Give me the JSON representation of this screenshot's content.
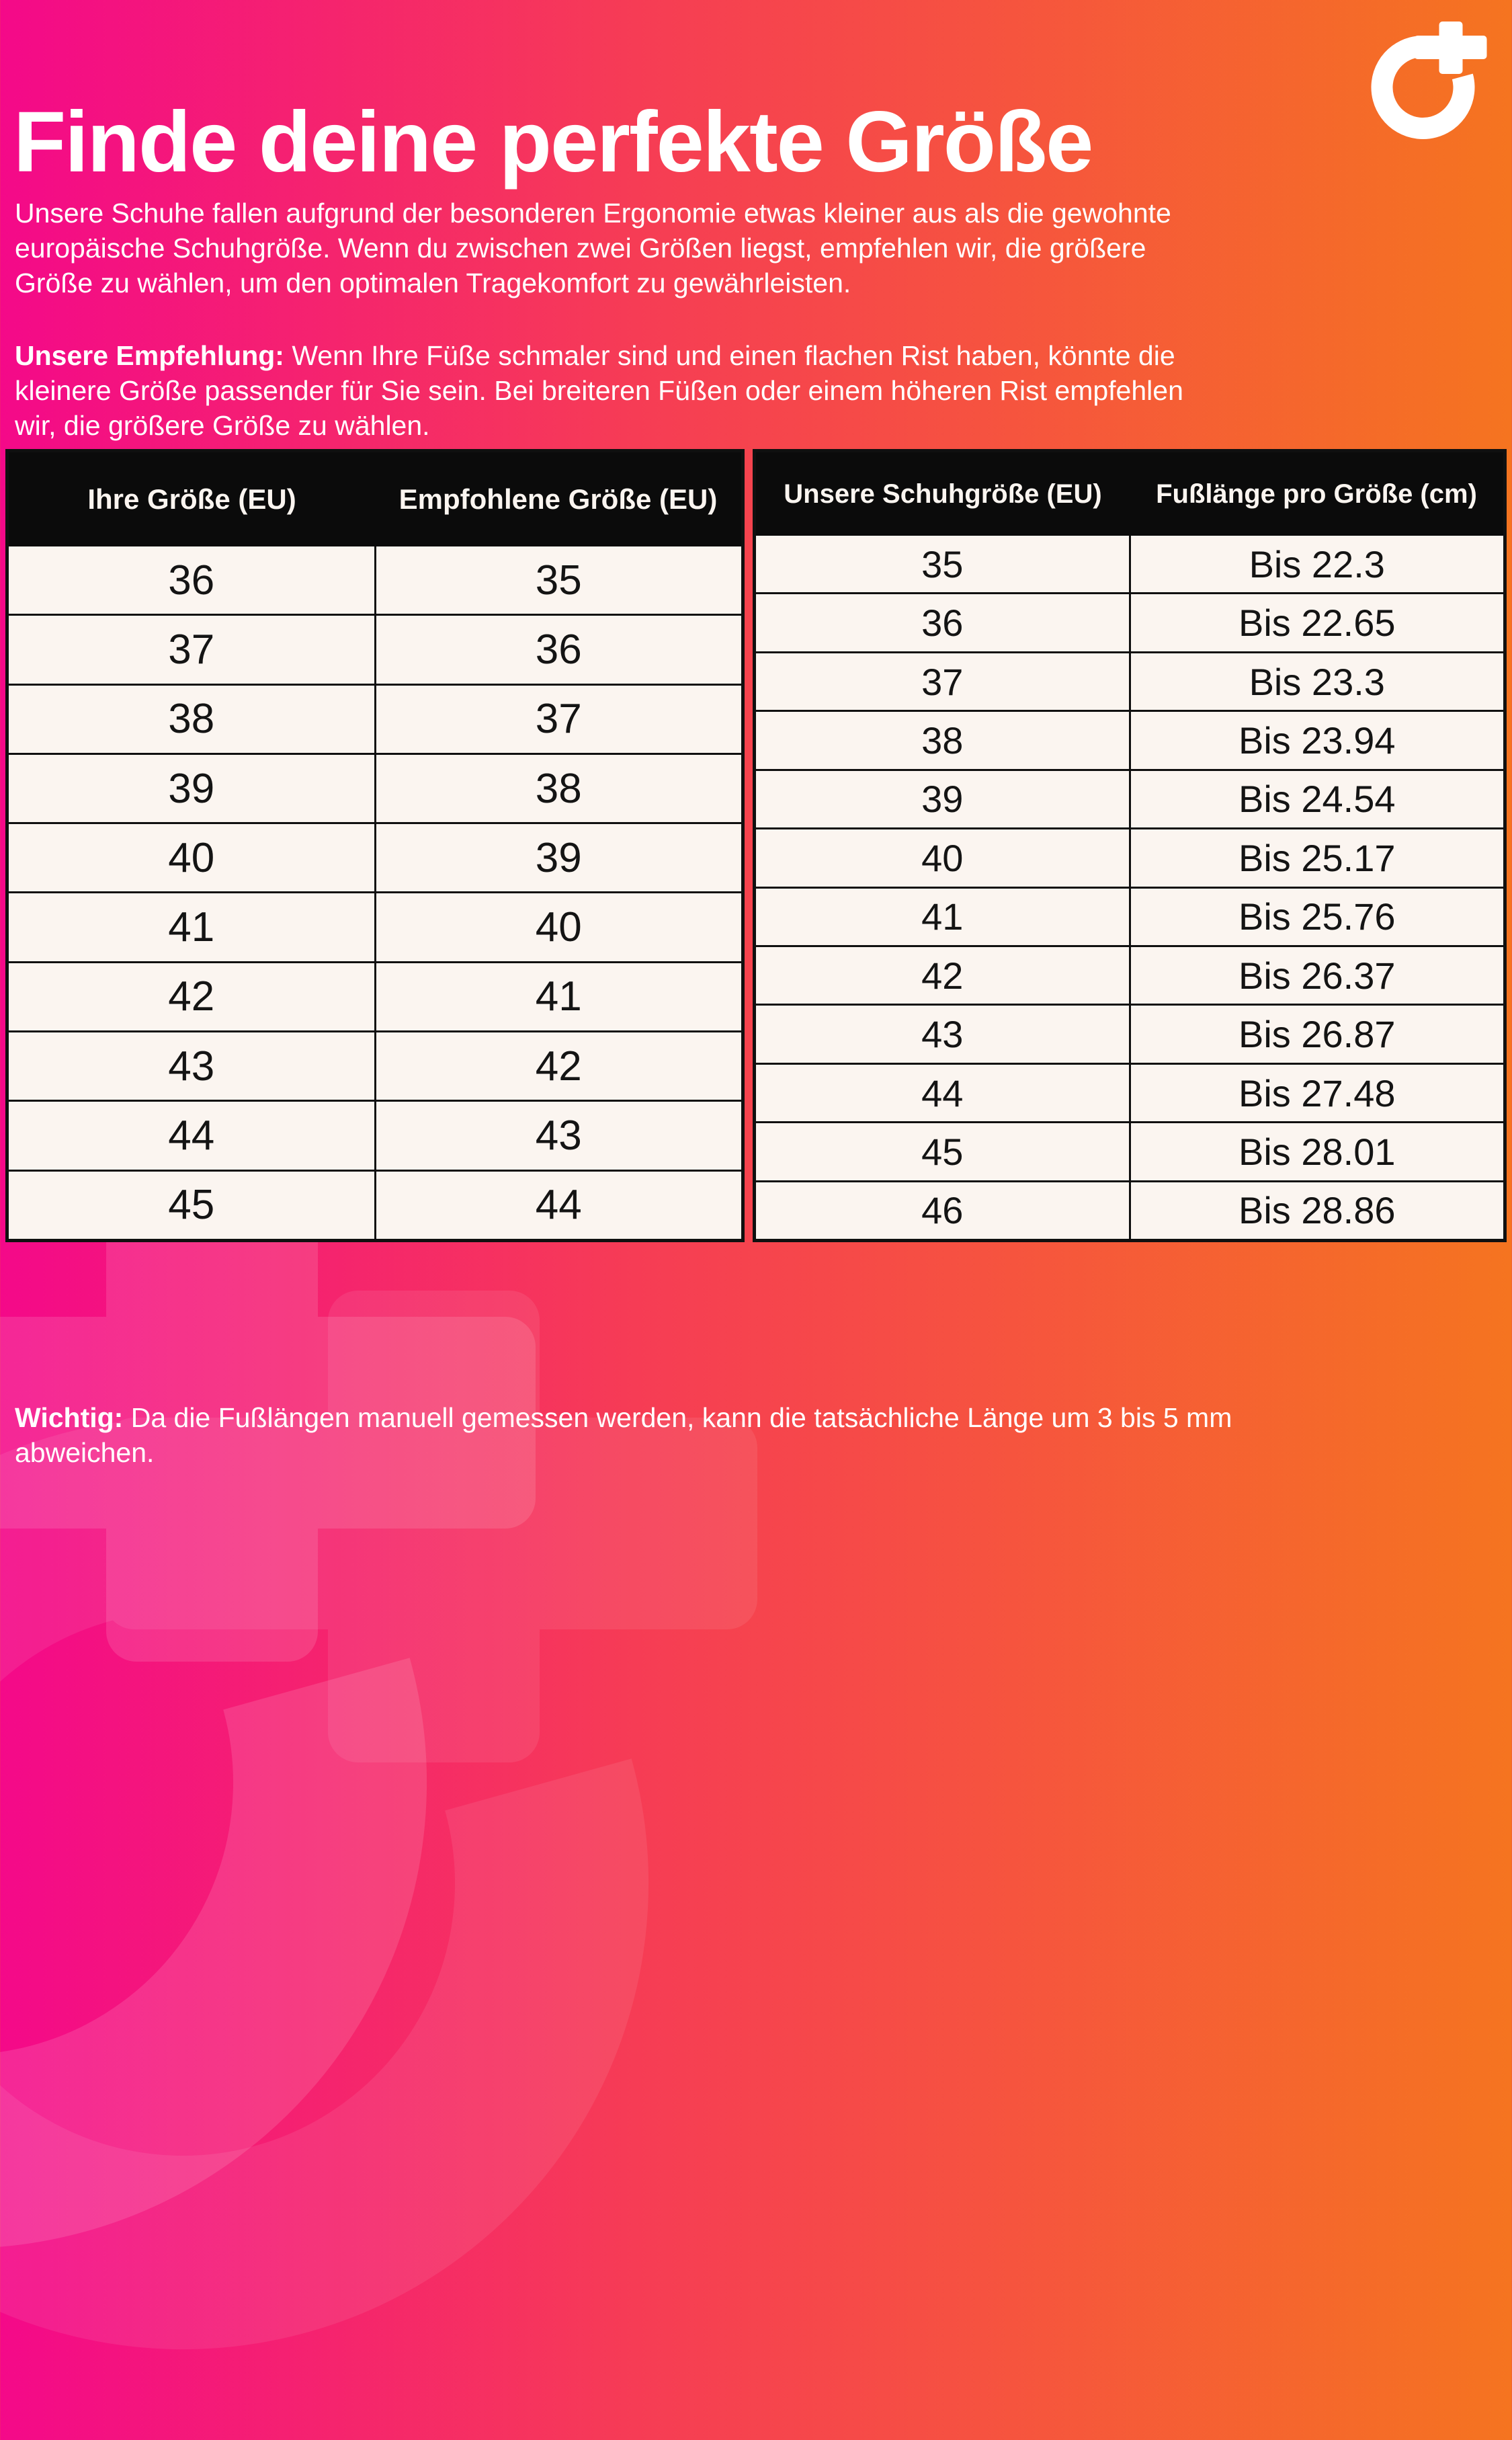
{
  "page": {
    "title": "Finde deine perfekte Größe",
    "intro": "Unsere Schuhe fallen aufgrund der besonderen Ergonomie etwas kleiner aus als die gewohnte\neuropäische Schuhgröße. Wenn du zwischen zwei Größen liegst, empfehlen wir, die größere\nGröße zu wählen, um den optimalen Tragekomfort zu gewährleisten.",
    "recommendation_label": "Unsere Empfehlung:",
    "recommendation_text": " Wenn Ihre Füße schmaler sind und einen flachen Rist haben, könnte die\nkleinere Größe passender für Sie sein. Bei breiteren Füßen oder einem höheren Rist empfehlen\nwir, die größere Größe zu wählen.",
    "note_label": "Wichtig:",
    "note_text": " Da die Fußlängen manuell gemessen werden, kann die tatsächliche Länge um 3 bis 5 mm\nabweichen."
  },
  "logo": {
    "name": "o-plus-brand-logo",
    "color": "#FFFFFF"
  },
  "colors": {
    "gradient_left": "#F40989",
    "gradient_right": "#F57420",
    "table_header_bg": "#0B0B0B",
    "table_header_text": "#FBF5F0",
    "table_cell_bg": "#FBF5F0",
    "table_border": "#101010",
    "body_text": "#FFFFFF"
  },
  "size_conversion_table": {
    "headers": [
      "Ihre Größe (EU)",
      "Empfohlene Größe (EU)"
    ],
    "rows": [
      [
        "36",
        "35"
      ],
      [
        "37",
        "36"
      ],
      [
        "38",
        "37"
      ],
      [
        "39",
        "38"
      ],
      [
        "40",
        "39"
      ],
      [
        "41",
        "40"
      ],
      [
        "42",
        "41"
      ],
      [
        "43",
        "42"
      ],
      [
        "44",
        "43"
      ],
      [
        "45",
        "44"
      ]
    ]
  },
  "foot_length_table": {
    "headers": [
      "Unsere Schuhgröße (EU)",
      "Fußlänge pro Größe (cm)"
    ],
    "rows": [
      [
        "35",
        "Bis 22.3"
      ],
      [
        "36",
        "Bis 22.65"
      ],
      [
        "37",
        "Bis 23.3"
      ],
      [
        "38",
        "Bis 23.94"
      ],
      [
        "39",
        "Bis 24.54"
      ],
      [
        "40",
        "Bis 25.17"
      ],
      [
        "41",
        "Bis 25.76"
      ],
      [
        "42",
        "Bis 26.37"
      ],
      [
        "43",
        "Bis 26.87"
      ],
      [
        "44",
        "Bis 27.48"
      ],
      [
        "45",
        "Bis 28.01"
      ],
      [
        "46",
        "Bis 28.86"
      ]
    ]
  }
}
